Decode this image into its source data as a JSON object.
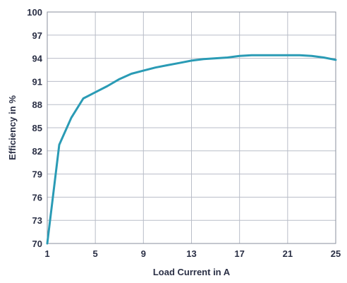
{
  "chart_data": {
    "type": "line",
    "title": "",
    "xlabel": "Load Current in A",
    "ylabel": "Efficiency in %",
    "xlim": [
      1,
      25
    ],
    "ylim": [
      70,
      100
    ],
    "xticks": [
      "1",
      "5",
      "9",
      "13",
      "17",
      "21",
      "25"
    ],
    "yticks": [
      "70",
      "73",
      "76",
      "79",
      "82",
      "85",
      "88",
      "91",
      "94",
      "97",
      "100"
    ],
    "grid": true,
    "legend": "none",
    "series": [
      {
        "color": "#2a9bb5",
        "x": [
          1,
          2,
          3,
          4,
          5,
          6,
          7,
          8,
          9,
          10,
          11,
          12,
          13,
          14,
          15,
          16,
          17,
          18,
          19,
          20,
          21,
          22,
          23,
          24,
          25
        ],
        "y": [
          70.0,
          82.8,
          86.3,
          88.8,
          89.6,
          90.4,
          91.3,
          92.0,
          92.4,
          92.8,
          93.1,
          93.4,
          93.7,
          93.9,
          94.0,
          94.1,
          94.3,
          94.4,
          94.4,
          94.4,
          94.4,
          94.4,
          94.3,
          94.1,
          93.8
        ]
      }
    ]
  }
}
